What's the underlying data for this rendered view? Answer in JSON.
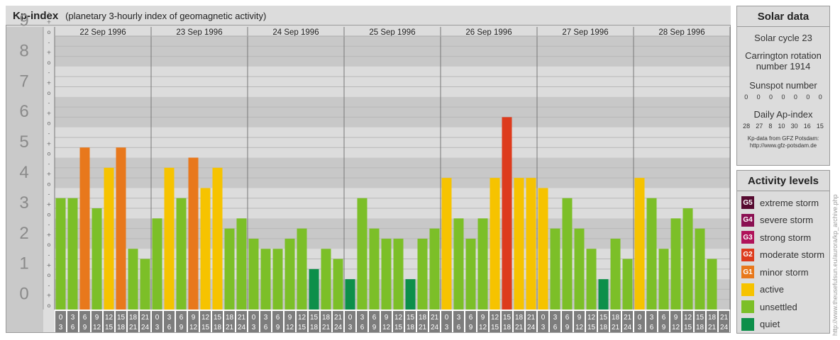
{
  "header": {
    "title": "Kp-index",
    "subtitle": "(planetary 3-hourly index of geomagnetic activity)"
  },
  "chart_data": {
    "type": "bar",
    "ylim": [
      0,
      9
    ],
    "y_ticks": [
      "0",
      "1",
      "2",
      "3",
      "4",
      "5",
      "6",
      "7",
      "8",
      "9"
    ],
    "y_sublabels": [
      "o",
      "+",
      "-"
    ],
    "days": [
      "22 Sep 1996",
      "23 Sep 1996",
      "24 Sep 1996",
      "25 Sep 1996",
      "26 Sep 1996",
      "27 Sep 1996",
      "28 Sep 1996"
    ],
    "interval_labels": [
      [
        "0",
        "3"
      ],
      [
        "3",
        "6"
      ],
      [
        "6",
        "9"
      ],
      [
        "9",
        "12"
      ],
      [
        "12",
        "15"
      ],
      [
        "15",
        "18"
      ],
      [
        "18",
        "21"
      ],
      [
        "21",
        "24"
      ]
    ],
    "values": [
      [
        3.667,
        3.667,
        5.333,
        3.333,
        4.667,
        5.333,
        2.0,
        1.667
      ],
      [
        3.0,
        4.667,
        3.667,
        5.0,
        4.0,
        4.667,
        2.667,
        3.0
      ],
      [
        2.333,
        2.0,
        2.0,
        2.333,
        2.667,
        1.333,
        2.0,
        1.667
      ],
      [
        1.0,
        3.667,
        2.667,
        2.333,
        2.333,
        1.0,
        2.333,
        2.667
      ],
      [
        4.333,
        3.0,
        2.333,
        3.0,
        4.333,
        6.333,
        4.333,
        4.333
      ],
      [
        4.0,
        2.667,
        3.667,
        2.667,
        2.0,
        1.0,
        2.333,
        1.667
      ],
      [
        4.333,
        3.667,
        2.0,
        3.0,
        3.333,
        2.667,
        1.667,
        0
      ]
    ],
    "colors": {
      "quiet": "#0d8f4a",
      "unsettled": "#7cbf28",
      "active": "#f6c300",
      "minor": "#e8781c",
      "moderate": "#dd3b1d",
      "strong": "#b0135a",
      "severe": "#8a1052",
      "extreme": "#560a30"
    }
  },
  "solar": {
    "title": "Solar data",
    "cycle": "Solar cycle 23",
    "rotation_line1": "Carrington rotation",
    "rotation_line2": "number 1914",
    "sunspot_label": "Sunspot number",
    "sunspot_values": [
      "0",
      "0",
      "0",
      "0",
      "0",
      "0",
      "0"
    ],
    "ap_label": "Daily Ap-index",
    "ap_values": [
      "28",
      "27",
      "8",
      "10",
      "30",
      "16",
      "15"
    ],
    "credit_line1": "Kp-data from GFZ Potsdam:",
    "credit_line2": "http://www.gfz-potsdam.de"
  },
  "legend": {
    "title": "Activity levels",
    "items": [
      {
        "code": "G5",
        "label": "extreme storm",
        "color": "#560a30"
      },
      {
        "code": "G4",
        "label": "severe storm",
        "color": "#8a1052"
      },
      {
        "code": "G3",
        "label": "strong storm",
        "color": "#b0135a"
      },
      {
        "code": "G2",
        "label": "moderate storm",
        "color": "#dd3b1d"
      },
      {
        "code": "G1",
        "label": "minor storm",
        "color": "#e8781c"
      },
      {
        "code": "",
        "label": "active",
        "color": "#f6c300"
      },
      {
        "code": "",
        "label": "unsettled",
        "color": "#7cbf28"
      },
      {
        "code": "",
        "label": "quiet",
        "color": "#0d8f4a"
      }
    ]
  },
  "side_url": "http://www.theusefulsun.eu/aurora/kp_archive.php"
}
